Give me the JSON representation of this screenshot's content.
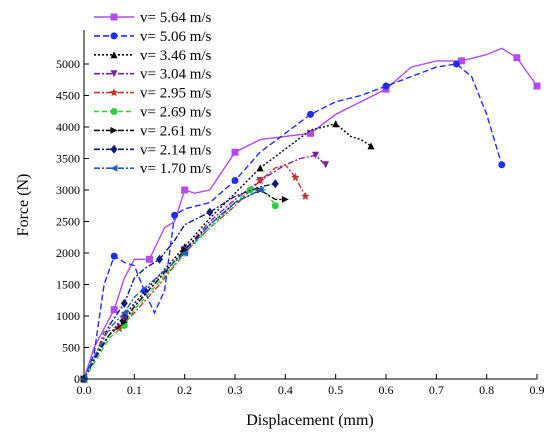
{
  "chart_data": {
    "type": "line",
    "xlabel": "Displacement (mm)",
    "ylabel": "Force (N)",
    "xlim": [
      0,
      0.9
    ],
    "ylim": [
      0,
      5500
    ],
    "xticks": [
      "0.0",
      "0.1",
      "0.2",
      "0.3",
      "0.4",
      "0.5",
      "0.6",
      "0.7",
      "0.8",
      "0.9"
    ],
    "yticks": [
      "0",
      "500",
      "1000",
      "1500",
      "2000",
      "2500",
      "3000",
      "3500",
      "4000",
      "4500",
      "5000"
    ],
    "grid": false,
    "legend_position": "top-left",
    "series": [
      {
        "name": "v= 5.64 m/s",
        "color": "#b24cf0",
        "dash": "",
        "marker": "square",
        "x": [
          0,
          0.02,
          0.04,
          0.06,
          0.08,
          0.1,
          0.13,
          0.16,
          0.18,
          0.2,
          0.22,
          0.25,
          0.3,
          0.35,
          0.4,
          0.45,
          0.5,
          0.55,
          0.6,
          0.65,
          0.7,
          0.75,
          0.8,
          0.83,
          0.86,
          0.9
        ],
        "y": [
          0,
          500,
          800,
          1100,
          1600,
          1900,
          1900,
          2400,
          2500,
          3000,
          2950,
          3000,
          3600,
          3800,
          3850,
          3900,
          4200,
          4400,
          4600,
          4950,
          5050,
          5050,
          5150,
          5250,
          5100,
          4650
        ]
      },
      {
        "name": "v= 5.06 m/s",
        "color": "#1f2ef0",
        "dash": "6,3",
        "marker": "circle",
        "x": [
          0,
          0.02,
          0.04,
          0.06,
          0.08,
          0.1,
          0.12,
          0.14,
          0.16,
          0.18,
          0.2,
          0.25,
          0.3,
          0.35,
          0.4,
          0.45,
          0.5,
          0.55,
          0.6,
          0.65,
          0.7,
          0.74,
          0.77,
          0.8,
          0.83
        ],
        "y": [
          0,
          400,
          1500,
          1950,
          1850,
          1800,
          1400,
          1050,
          1400,
          2600,
          2700,
          2800,
          3150,
          3600,
          3900,
          4200,
          4400,
          4500,
          4650,
          4800,
          4950,
          5000,
          4800,
          4200,
          3400
        ]
      },
      {
        "name": "v= 3.46 m/s",
        "color": "#000000",
        "dash": "2,2",
        "marker": "triangle-up",
        "x": [
          0,
          0.02,
          0.05,
          0.08,
          0.1,
          0.15,
          0.2,
          0.25,
          0.3,
          0.35,
          0.4,
          0.45,
          0.5,
          0.53,
          0.55,
          0.57
        ],
        "y": [
          0,
          350,
          700,
          1000,
          1200,
          1650,
          2100,
          2550,
          2950,
          3350,
          3650,
          3950,
          4050,
          3850,
          3800,
          3700
        ]
      },
      {
        "name": "v= 3.04 m/s",
        "color": "#7b1fa2",
        "dash": "6,2,2,2",
        "marker": "triangle-down",
        "x": [
          0,
          0.02,
          0.05,
          0.08,
          0.1,
          0.15,
          0.2,
          0.25,
          0.3,
          0.35,
          0.4,
          0.43,
          0.46,
          0.48
        ],
        "y": [
          0,
          350,
          700,
          950,
          1150,
          1600,
          2050,
          2500,
          2850,
          3150,
          3400,
          3500,
          3550,
          3400
        ]
      },
      {
        "name": "v= 2.95 m/s",
        "color": "#c0392b",
        "dash": "6,2,2,2",
        "marker": "star",
        "x": [
          0,
          0.02,
          0.04,
          0.07,
          0.1,
          0.15,
          0.2,
          0.25,
          0.3,
          0.35,
          0.38,
          0.4,
          0.42,
          0.44
        ],
        "y": [
          0,
          300,
          750,
          800,
          1050,
          1500,
          2000,
          2400,
          2750,
          3150,
          3350,
          3400,
          3200,
          2900
        ]
      },
      {
        "name": "v= 2.69 m/s",
        "color": "#2ecc40",
        "dash": "5,3",
        "marker": "circle",
        "x": [
          0,
          0.02,
          0.05,
          0.08,
          0.1,
          0.15,
          0.2,
          0.25,
          0.3,
          0.33,
          0.36,
          0.38
        ],
        "y": [
          0,
          250,
          650,
          850,
          1100,
          1550,
          2000,
          2400,
          2800,
          3000,
          3000,
          2750
        ]
      },
      {
        "name": "v= 2.61 m/s",
        "color": "#111111",
        "dash": "6,2,2,2",
        "marker": "triangle-right",
        "x": [
          0,
          0.02,
          0.05,
          0.08,
          0.1,
          0.15,
          0.2,
          0.25,
          0.3,
          0.35,
          0.38,
          0.4
        ],
        "y": [
          0,
          300,
          700,
          900,
          1150,
          1600,
          2050,
          2450,
          2800,
          3000,
          2850,
          2850
        ]
      },
      {
        "name": "v= 2.14 m/s",
        "color": "#0d1b7a",
        "dash": "6,2,2,2",
        "marker": "diamond",
        "x": [
          0,
          0.02,
          0.05,
          0.08,
          0.1,
          0.12,
          0.15,
          0.18,
          0.2,
          0.25,
          0.3,
          0.35,
          0.38
        ],
        "y": [
          0,
          300,
          850,
          1200,
          1600,
          1750,
          1900,
          2200,
          2450,
          2650,
          2900,
          3050,
          3100
        ]
      },
      {
        "name": "v= 1.70 m/s",
        "color": "#1f5fc0",
        "dash": "6,2,2,2",
        "marker": "triangle-left",
        "x": [
          0,
          0.02,
          0.05,
          0.08,
          0.1,
          0.15,
          0.2,
          0.25,
          0.3,
          0.35
        ],
        "y": [
          0,
          350,
          800,
          1050,
          1300,
          1650,
          2000,
          2450,
          2800,
          3000
        ]
      }
    ]
  }
}
